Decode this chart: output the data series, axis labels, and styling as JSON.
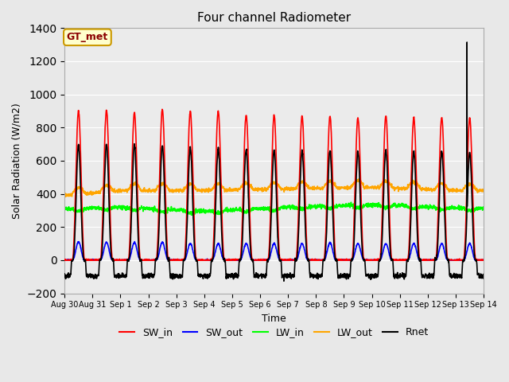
{
  "title": "Four channel Radiometer",
  "xlabel": "Time",
  "ylabel": "Solar Radiation (W/m2)",
  "ylim": [
    -200,
    1400
  ],
  "fig_bg_color": "#e8e8e8",
  "plot_bg_color": "#ebebeb",
  "annotation_text": "GT_met",
  "annotation_box_color": "#ffffcc",
  "annotation_box_edge": "#cc9900",
  "tick_labels": [
    "Aug 30",
    "Aug 31",
    "Sep 1",
    "Sep 2",
    "Sep 3",
    "Sep 4",
    "Sep 5",
    "Sep 6",
    "Sep 7",
    "Sep 8",
    "Sep 9",
    "Sep 10",
    "Sep 11",
    "Sep 12",
    "Sep 13",
    "Sep 14"
  ],
  "series": {
    "SW_in": {
      "color": "red",
      "lw": 1.2
    },
    "SW_out": {
      "color": "blue",
      "lw": 1.2
    },
    "LW_in": {
      "color": "lime",
      "lw": 1.2
    },
    "LW_out": {
      "color": "orange",
      "lw": 1.2
    },
    "Rnet": {
      "color": "black",
      "lw": 1.2
    }
  },
  "n_days": 15,
  "dt_min": 10,
  "SW_in_peak": 900,
  "SW_out_peak": 100,
  "LW_in_base": 320,
  "LW_out_base": 400,
  "Rnet_peak": 690,
  "Rnet_night": -100,
  "noise_seed": 42
}
